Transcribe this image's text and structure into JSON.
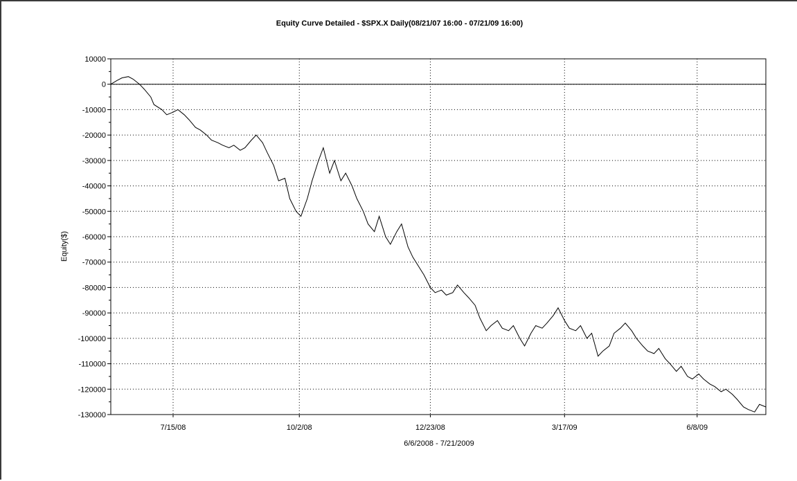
{
  "chart_data": {
    "type": "line",
    "title": "Equity Curve Detailed - $SPX.X Daily(08/21/07 16:00 - 07/21/09 16:00)",
    "xlabel": "6/6/2008 - 7/21/2009",
    "ylabel": "Equity($)",
    "xlim": [
      "2008-06-06",
      "2009-07-21"
    ],
    "ylim": [
      -130000,
      10000
    ],
    "y_ticks": [
      10000,
      0,
      -10000,
      -20000,
      -30000,
      -40000,
      -50000,
      -60000,
      -70000,
      -80000,
      -90000,
      -100000,
      -110000,
      -120000,
      -130000
    ],
    "x_ticks": [
      {
        "date": "2008-07-15",
        "label": "7/15/08"
      },
      {
        "date": "2008-10-02",
        "label": "10/2/08"
      },
      {
        "date": "2008-12-23",
        "label": "12/23/08"
      },
      {
        "date": "2009-03-17",
        "label": "3/17/09"
      },
      {
        "date": "2009-06-08",
        "label": "6/8/09"
      }
    ],
    "grid": true,
    "zero_line": true,
    "line_color": "#000000",
    "series": [
      {
        "x": [
          "2008-06-06",
          "2008-06-10",
          "2008-06-13",
          "2008-06-17",
          "2008-06-20",
          "2008-06-24",
          "2008-06-27",
          "2008-07-01",
          "2008-07-03",
          "2008-07-08",
          "2008-07-11",
          "2008-07-15",
          "2008-07-18",
          "2008-07-22",
          "2008-07-25",
          "2008-07-29",
          "2008-08-01",
          "2008-08-05",
          "2008-08-08",
          "2008-08-12",
          "2008-08-15",
          "2008-08-19",
          "2008-08-22",
          "2008-08-26",
          "2008-08-29",
          "2008-09-02",
          "2008-09-05",
          "2008-09-09",
          "2008-09-12",
          "2008-09-16",
          "2008-09-19",
          "2008-09-23",
          "2008-09-26",
          "2008-09-30",
          "2008-10-03",
          "2008-10-07",
          "2008-10-10",
          "2008-10-14",
          "2008-10-17",
          "2008-10-21",
          "2008-10-24",
          "2008-10-28",
          "2008-10-31",
          "2008-11-04",
          "2008-11-07",
          "2008-11-11",
          "2008-11-14",
          "2008-11-18",
          "2008-11-21",
          "2008-11-25",
          "2008-11-28",
          "2008-12-02",
          "2008-12-05",
          "2008-12-09",
          "2008-12-12",
          "2008-12-16",
          "2008-12-19",
          "2008-12-23",
          "2008-12-26",
          "2008-12-30",
          "2009-01-02",
          "2009-01-06",
          "2009-01-09",
          "2009-01-13",
          "2009-01-16",
          "2009-01-20",
          "2009-01-23",
          "2009-01-27",
          "2009-01-30",
          "2009-02-03",
          "2009-02-06",
          "2009-02-10",
          "2009-02-13",
          "2009-02-17",
          "2009-02-20",
          "2009-02-24",
          "2009-02-27",
          "2009-03-03",
          "2009-03-06",
          "2009-03-10",
          "2009-03-13",
          "2009-03-17",
          "2009-03-20",
          "2009-03-24",
          "2009-03-27",
          "2009-03-31",
          "2009-04-03",
          "2009-04-07",
          "2009-04-10",
          "2009-04-14",
          "2009-04-17",
          "2009-04-21",
          "2009-04-24",
          "2009-04-28",
          "2009-05-01",
          "2009-05-05",
          "2009-05-08",
          "2009-05-12",
          "2009-05-15",
          "2009-05-19",
          "2009-05-22",
          "2009-05-26",
          "2009-05-29",
          "2009-06-02",
          "2009-06-05",
          "2009-06-09",
          "2009-06-12",
          "2009-06-16",
          "2009-06-19",
          "2009-06-23",
          "2009-06-26",
          "2009-06-30",
          "2009-07-03",
          "2009-07-07",
          "2009-07-10",
          "2009-07-14",
          "2009-07-17",
          "2009-07-21"
        ],
        "y": [
          0,
          1500,
          2500,
          3000,
          2000,
          0,
          -2000,
          -5000,
          -8000,
          -10000,
          -12000,
          -11000,
          -10000,
          -12000,
          -14000,
          -17000,
          -18000,
          -20000,
          -22000,
          -23000,
          -24000,
          -25000,
          -24000,
          -26000,
          -25000,
          -22000,
          -20000,
          -23000,
          -27000,
          -32000,
          -38000,
          -37000,
          -45000,
          -50000,
          -52000,
          -45000,
          -38000,
          -30000,
          -25000,
          -35000,
          -30000,
          -38000,
          -35000,
          -40000,
          -45000,
          -50000,
          -55000,
          -58000,
          -52000,
          -60000,
          -63000,
          -58000,
          -55000,
          -64000,
          -68000,
          -72000,
          -75000,
          -80000,
          -82000,
          -81000,
          -83000,
          -82000,
          -79000,
          -82000,
          -84000,
          -87000,
          -92000,
          -97000,
          -95000,
          -93000,
          -96000,
          -97000,
          -95000,
          -100000,
          -103000,
          -98000,
          -95000,
          -96000,
          -94000,
          -91000,
          -88000,
          -93000,
          -96000,
          -97000,
          -95000,
          -100000,
          -98000,
          -107000,
          -105000,
          -103000,
          -98000,
          -96000,
          -94000,
          -97000,
          -100000,
          -103000,
          -105000,
          -106000,
          -104000,
          -108000,
          -110000,
          -113000,
          -111000,
          -115000,
          -116000,
          -114000,
          -116000,
          -118000,
          -119000,
          -121000,
          -120000,
          -122000,
          -124000,
          -127000,
          -128000,
          -129000,
          -126000,
          -127000
        ]
      }
    ]
  }
}
